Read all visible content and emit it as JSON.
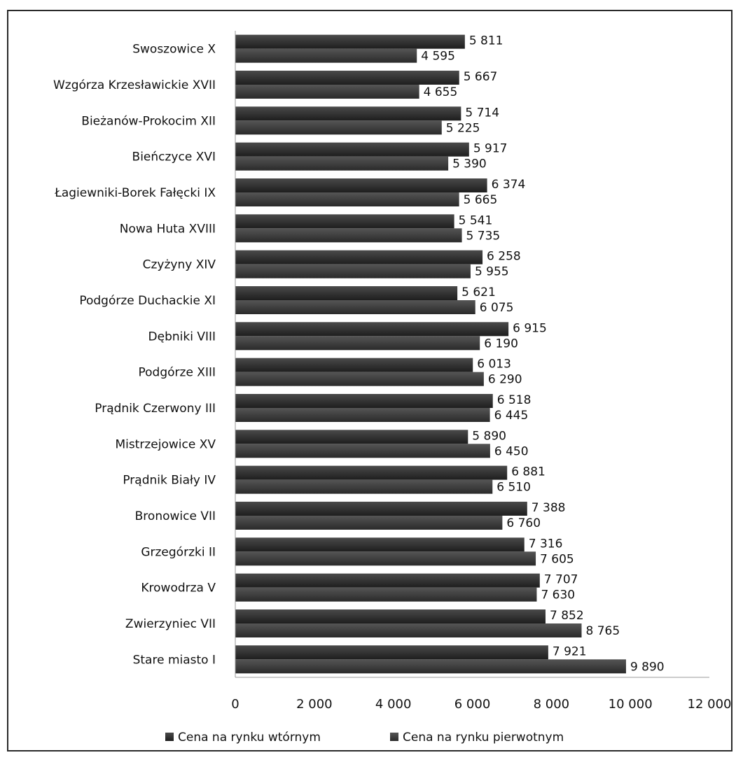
{
  "chart_data": {
    "type": "bar",
    "orientation": "horizontal",
    "categories": [
      "Swoszowice X",
      "Wzgórza Krzesławickie XVII",
      "Bieżanów-Prokocim XII",
      "Bieńczyce XVI",
      "Łagiewniki-Borek Fałęcki IX",
      "Nowa Huta XVIII",
      "Czyżyny XIV",
      "Podgórze Duchackie XI",
      "Dębniki VIII",
      "Podgórze XIII",
      "Prądnik Czerwony III",
      "Mistrzejowice XV",
      "Prądnik Biały IV",
      "Bronowice VII",
      "Grzegórzki II",
      "Krowodrza V",
      "Zwierzyniec VII",
      "Stare miasto I"
    ],
    "series": [
      {
        "name": "Cena na rynku wtórnym",
        "values": [
          5811,
          5667,
          5714,
          5917,
          6374,
          5541,
          6258,
          5621,
          6915,
          6013,
          6518,
          5890,
          6881,
          7388,
          7316,
          7707,
          7852,
          7921
        ],
        "labels": [
          "5 811",
          "5 667",
          "5 714",
          "5 917",
          "6 374",
          "5 541",
          "6 258",
          "5 621",
          "6 915",
          "6 013",
          "6 518",
          "5 890",
          "6 881",
          "7 388",
          "7 316",
          "7 707",
          "7 852",
          "7 921"
        ]
      },
      {
        "name": "Cena na rynku pierwotnym",
        "values": [
          4595,
          4655,
          5225,
          5390,
          5665,
          5735,
          5955,
          6075,
          6190,
          6290,
          6445,
          6450,
          6510,
          6760,
          7605,
          7630,
          8765,
          9890
        ],
        "labels": [
          "4 595",
          "4 655",
          "5 225",
          "5 390",
          "5 665",
          "5 735",
          "5 955",
          "6 075",
          "6 190",
          "6 290",
          "6 445",
          "6 450",
          "6 510",
          "6 760",
          "7 605",
          "7 630",
          "8 765",
          "9 890"
        ]
      }
    ],
    "xlim": [
      0,
      12000
    ],
    "xticks": [
      0,
      2000,
      4000,
      6000,
      8000,
      10000,
      12000
    ],
    "xtick_labels": [
      "0",
      "2 000",
      "4 000",
      "6 000",
      "8 000",
      "10 000",
      "12 000"
    ],
    "grid": false,
    "legend_position": "bottom",
    "colors": {
      "secondary": "#2b2b2b",
      "primary": "#3a3a3a",
      "text": "#111111",
      "axis": "#555555"
    }
  }
}
